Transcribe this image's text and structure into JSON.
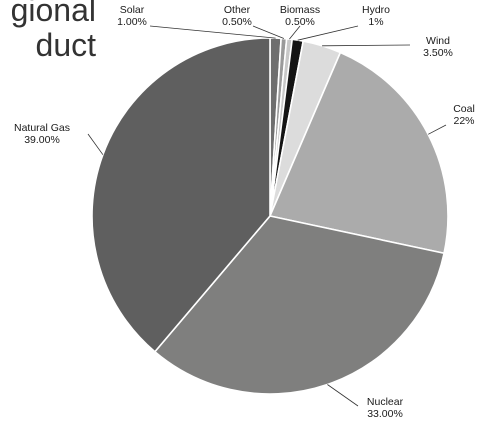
{
  "title": {
    "line1": "gional",
    "line2": "duct"
  },
  "chart_data": {
    "type": "pie",
    "slices": [
      {
        "name": "Solar",
        "label": "Solar",
        "value": 1.0,
        "value_label": "1.00%",
        "color": "#6e6e6e"
      },
      {
        "name": "Other",
        "label": "Other",
        "value": 0.5,
        "value_label": "0.50%",
        "color": "#9a9a9a"
      },
      {
        "name": "Biomass",
        "label": "Biomass",
        "value": 0.5,
        "value_label": "0.50%",
        "color": "#c8c8c8"
      },
      {
        "name": "Hydro",
        "label": "Hydro",
        "value": 1.0,
        "value_label": "1%",
        "color": "#141414"
      },
      {
        "name": "Wind",
        "label": "Wind",
        "value": 3.5,
        "value_label": "3.50%",
        "color": "#dcdcdc"
      },
      {
        "name": "Coal",
        "label": "Coal",
        "value": 22.0,
        "value_label": "22%",
        "color": "#ababab"
      },
      {
        "name": "Nuclear",
        "label": "Nuclear",
        "value": 33.0,
        "value_label": "33.00%",
        "color": "#7f7f7e"
      },
      {
        "name": "Natural Gas",
        "label": "Natural Gas",
        "value": 39.0,
        "value_label": "39.00%",
        "color": "#5f5f5f"
      }
    ],
    "start": "12 o'clock",
    "direction": "clockwise",
    "legend": "none"
  }
}
